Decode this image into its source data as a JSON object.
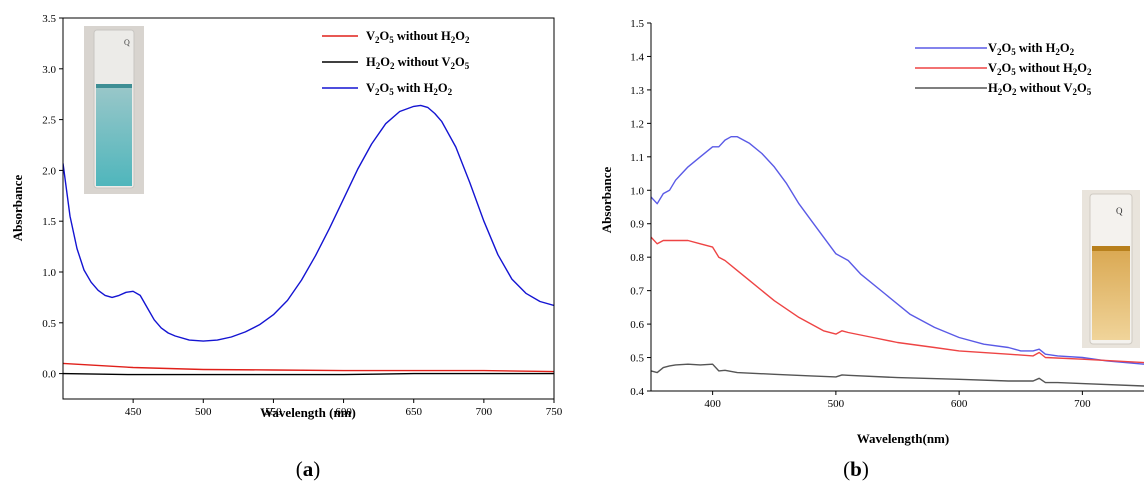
{
  "chart_data": [
    {
      "type": "line",
      "panel_label": "(a)",
      "panel_label_parts": [
        "(",
        "a",
        ")"
      ],
      "xlabel": "Wavelength (nm)",
      "ylabel": "Absorbance",
      "xlim": [
        400,
        750
      ],
      "ylim": [
        -0.25,
        3.5
      ],
      "xticks": [
        450,
        500,
        550,
        600,
        650,
        700,
        750
      ],
      "yticks": [
        0.0,
        0.5,
        1.0,
        1.5,
        2.0,
        2.5,
        3.0,
        3.5
      ],
      "ytick_labels": [
        "0.0",
        "0.5",
        "1.0",
        "1.5",
        "2.0",
        "2.5",
        "3.0",
        "3.5"
      ],
      "legend_position": "top-right",
      "inset": "cuvette photo (blue-green solution), top-left",
      "series": [
        {
          "name": "V2O5 without H2O2",
          "color": "#e0201a",
          "x": [
            400,
            450,
            500,
            550,
            600,
            650,
            700,
            750
          ],
          "y": [
            0.1,
            0.06,
            0.04,
            0.035,
            0.03,
            0.03,
            0.03,
            0.02
          ]
        },
        {
          "name": "H2O2 without V2O5",
          "color": "#000000",
          "x": [
            400,
            450,
            500,
            550,
            600,
            650,
            700,
            750
          ],
          "y": [
            0.0,
            -0.01,
            -0.01,
            -0.01,
            -0.01,
            0.0,
            0.0,
            0.0
          ]
        },
        {
          "name": "V2O5 with  H2O2",
          "color": "#1414d2",
          "x": [
            400,
            405,
            410,
            415,
            420,
            425,
            430,
            435,
            440,
            445,
            450,
            455,
            460,
            465,
            470,
            475,
            480,
            490,
            500,
            510,
            520,
            530,
            540,
            550,
            560,
            570,
            580,
            590,
            600,
            610,
            620,
            630,
            640,
            650,
            655,
            660,
            665,
            670,
            680,
            690,
            700,
            710,
            720,
            730,
            740,
            750
          ],
          "y": [
            2.07,
            1.55,
            1.23,
            1.02,
            0.9,
            0.82,
            0.77,
            0.75,
            0.77,
            0.8,
            0.81,
            0.77,
            0.65,
            0.53,
            0.45,
            0.4,
            0.37,
            0.33,
            0.32,
            0.33,
            0.36,
            0.41,
            0.48,
            0.58,
            0.72,
            0.92,
            1.16,
            1.43,
            1.72,
            2.01,
            2.26,
            2.46,
            2.58,
            2.63,
            2.64,
            2.62,
            2.56,
            2.48,
            2.23,
            1.88,
            1.5,
            1.17,
            0.93,
            0.79,
            0.71,
            0.67
          ]
        }
      ]
    },
    {
      "type": "line",
      "panel_label": "(b)",
      "panel_label_parts": [
        "(",
        "b",
        ")"
      ],
      "xlabel": "Wavelength(nm)",
      "ylabel": "Absorbance",
      "xlim": [
        350,
        750
      ],
      "ylim": [
        0.4,
        1.5
      ],
      "xticks": [
        400,
        500,
        600,
        700
      ],
      "yticks": [
        0.4,
        0.5,
        0.6,
        0.7,
        0.8,
        0.9,
        1.0,
        1.1,
        1.2,
        1.3,
        1.4,
        1.5
      ],
      "ytick_labels": [
        "0.4",
        "0.5",
        "0.6",
        "0.7",
        "0.8",
        "0.9",
        "1.0",
        "1.1",
        "1.2",
        "1.3",
        "1.4",
        "1.5"
      ],
      "legend_position": "top-right",
      "inset": "cuvette photo (yellow-orange solution), right side",
      "series": [
        {
          "name": "V2O5 with  H2O2",
          "color": "#5a5ae6",
          "x": [
            350,
            355,
            360,
            365,
            370,
            375,
            380,
            390,
            400,
            405,
            410,
            415,
            420,
            430,
            440,
            450,
            460,
            470,
            480,
            490,
            500,
            510,
            520,
            540,
            560,
            580,
            600,
            620,
            640,
            650,
            660,
            665,
            670,
            680,
            700,
            720,
            750
          ],
          "y": [
            0.98,
            0.96,
            0.99,
            1.0,
            1.03,
            1.05,
            1.07,
            1.1,
            1.13,
            1.13,
            1.15,
            1.16,
            1.16,
            1.14,
            1.11,
            1.07,
            1.02,
            0.96,
            0.91,
            0.86,
            0.81,
            0.79,
            0.75,
            0.69,
            0.63,
            0.59,
            0.56,
            0.54,
            0.53,
            0.52,
            0.52,
            0.525,
            0.51,
            0.505,
            0.5,
            0.49,
            0.48
          ]
        },
        {
          "name": "V2O5 without H2O2",
          "color": "#ee4444",
          "x": [
            350,
            355,
            360,
            370,
            380,
            390,
            400,
            405,
            410,
            420,
            430,
            450,
            470,
            490,
            500,
            505,
            510,
            530,
            550,
            580,
            600,
            640,
            660,
            665,
            670,
            700,
            750
          ],
          "y": [
            0.86,
            0.84,
            0.85,
            0.85,
            0.85,
            0.84,
            0.83,
            0.8,
            0.79,
            0.76,
            0.73,
            0.67,
            0.62,
            0.58,
            0.57,
            0.58,
            0.575,
            0.56,
            0.545,
            0.53,
            0.52,
            0.51,
            0.505,
            0.515,
            0.5,
            0.495,
            0.485
          ]
        },
        {
          "name": "H2O2 without V2O5",
          "color": "#555555",
          "x": [
            350,
            355,
            360,
            365,
            370,
            380,
            390,
            400,
            405,
            410,
            420,
            450,
            480,
            500,
            505,
            510,
            550,
            600,
            640,
            660,
            665,
            670,
            680,
            700,
            750
          ],
          "y": [
            0.46,
            0.455,
            0.47,
            0.475,
            0.478,
            0.48,
            0.478,
            0.48,
            0.46,
            0.462,
            0.455,
            0.45,
            0.445,
            0.442,
            0.448,
            0.447,
            0.44,
            0.435,
            0.43,
            0.43,
            0.438,
            0.425,
            0.425,
            0.422,
            0.415
          ]
        }
      ]
    }
  ]
}
